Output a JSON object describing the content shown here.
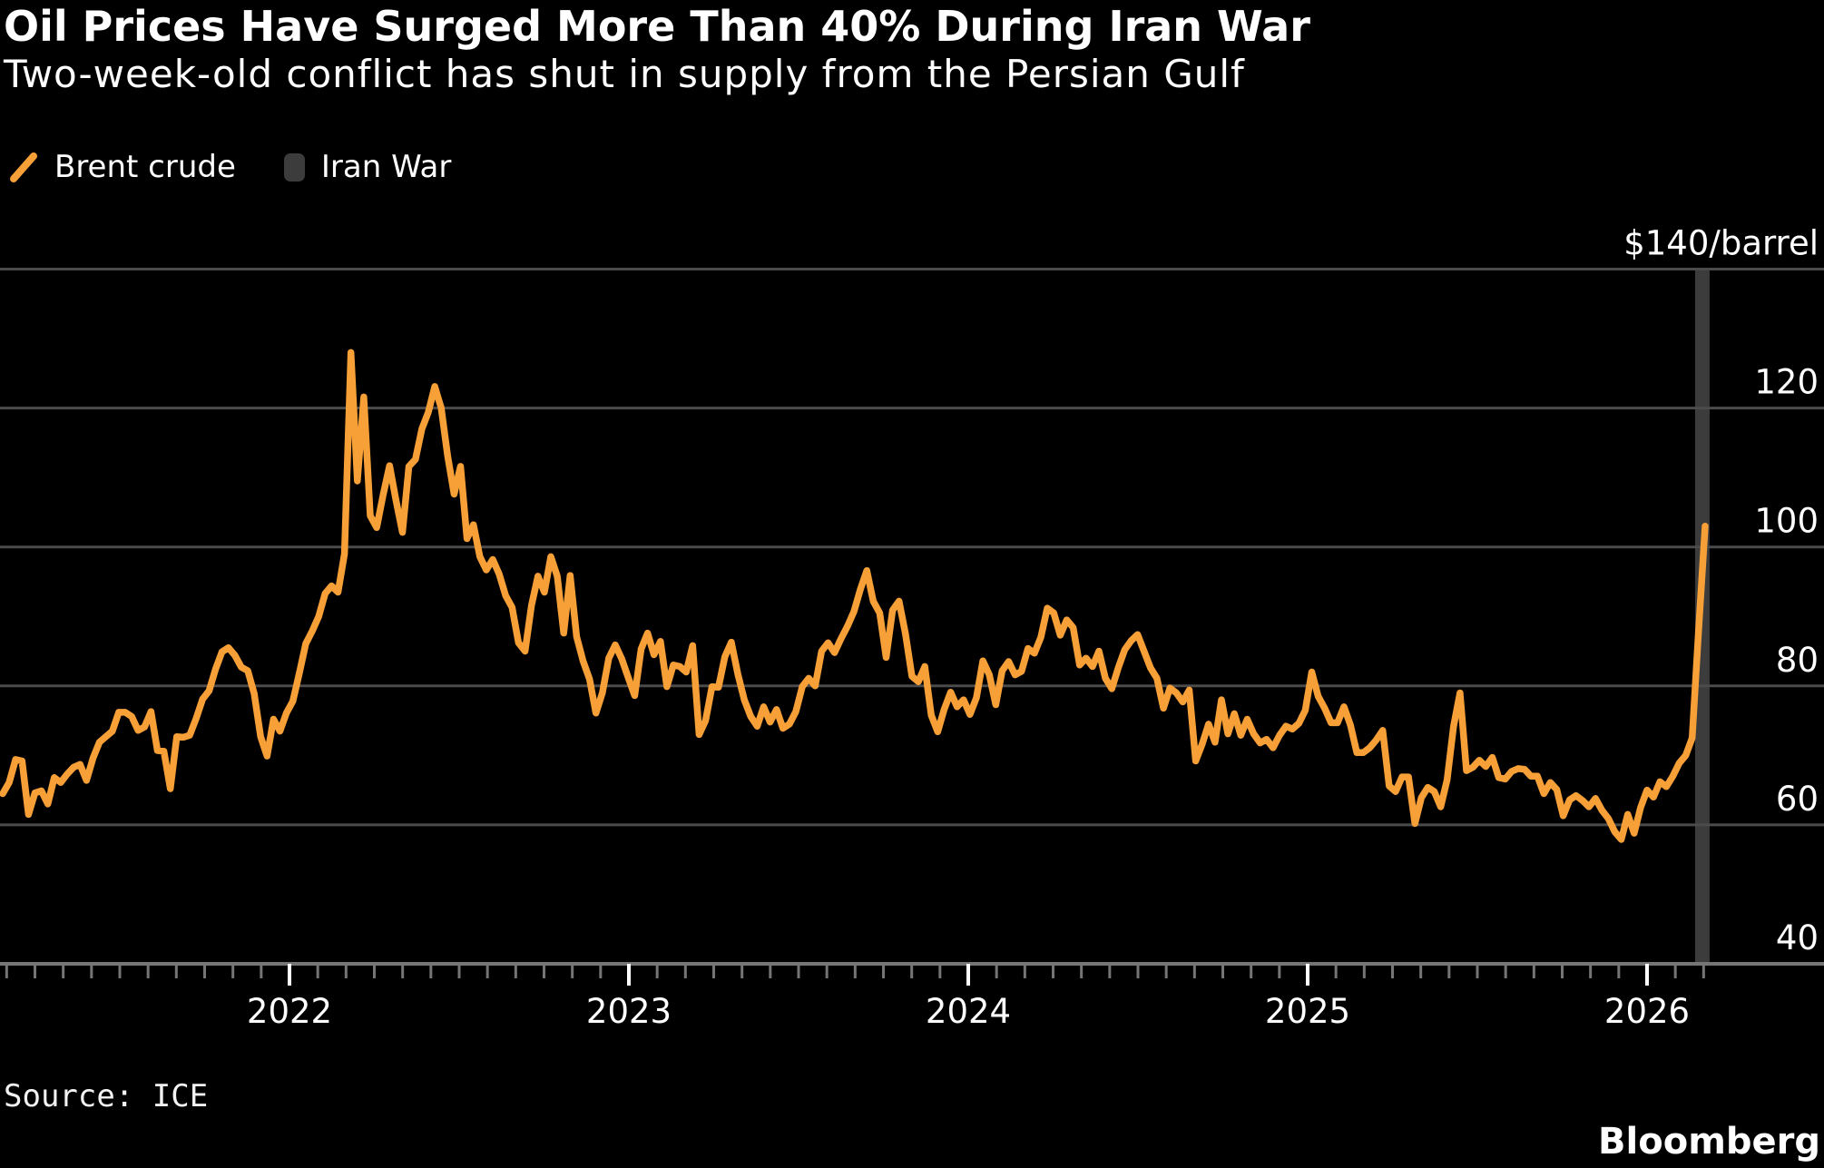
{
  "header": {
    "title": "Oil Prices Have Surged More Than 40% During Iran War",
    "subtitle": "Two-week-old conflict has shut in supply from the Persian Gulf"
  },
  "legend": {
    "brent_label": "Brent crude",
    "war_label": "Iran War"
  },
  "footer": {
    "source": "Source: ICE",
    "brand": "Bloomberg"
  },
  "colors": {
    "background": "#000000",
    "line_orange": "#F7A038",
    "gridline": "#4B4B4B",
    "axis": "#757575",
    "war_band": "#3C3C3C",
    "text_white": "#FFFFFF"
  },
  "chart_data": {
    "type": "line",
    "title": "Oil Prices Have Surged More Than 40% During Iran War",
    "xlabel": "",
    "ylabel": "$/barrel",
    "ylim": [
      40,
      140
    ],
    "grid": true,
    "legend_position": "top-left",
    "top_axis_label": "$140/barrel",
    "ytick_values": [
      120,
      100,
      80,
      60,
      40
    ],
    "ytick_labels": [
      "120",
      "100",
      "80",
      "60",
      "40"
    ],
    "year_ticks": [
      "2022",
      "2023",
      "2024",
      "2025",
      "2026"
    ],
    "band": {
      "name": "Iran War",
      "start_t": 2026.1415,
      "end_t": 2026.1843
    },
    "series": [
      {
        "name": "Brent crude",
        "units": "USD per barrel",
        "t0_years": 2021.155,
        "dt_years": 0.019,
        "prices": [
          64.5,
          66.1,
          69.4,
          69.2,
          61.5,
          64.6,
          64.9,
          63.0,
          66.8,
          66.1,
          67.3,
          68.3,
          68.7,
          66.4,
          69.6,
          71.9,
          72.7,
          73.5,
          76.2,
          76.2,
          75.6,
          73.6,
          74.1,
          76.3,
          70.7,
          70.6,
          65.2,
          72.7,
          72.6,
          72.9,
          75.3,
          78.1,
          79.3,
          82.4,
          84.9,
          85.5,
          84.4,
          82.7,
          82.2,
          78.9,
          72.7,
          69.9,
          75.2,
          73.5,
          76.1,
          77.8,
          81.8,
          86.1,
          87.9,
          90.0,
          93.3,
          94.4,
          93.5,
          99.0,
          128.0,
          109.5,
          121.6,
          104.5,
          102.8,
          107.5,
          111.7,
          106.7,
          102.1,
          111.6,
          112.6,
          117.0,
          119.4,
          123.1,
          120.0,
          113.1,
          107.6,
          111.6,
          101.2,
          103.2,
          98.6,
          96.7,
          98.2,
          96.1,
          93.0,
          91.3,
          86.2,
          85.0,
          91.6,
          95.8,
          93.5,
          98.6,
          95.8,
          87.6,
          95.9,
          87.1,
          83.6,
          81.0,
          76.1,
          79.0,
          84.0,
          85.9,
          83.9,
          81.2,
          78.6,
          85.3,
          87.6,
          84.5,
          86.4,
          79.9,
          83.0,
          82.8,
          82.0,
          85.8,
          73.0,
          75.0,
          79.9,
          79.8,
          84.2,
          86.3,
          81.7,
          78.0,
          75.6,
          74.2,
          77.0,
          74.8,
          76.6,
          73.9,
          74.5,
          76.3,
          79.9,
          81.1,
          80.0,
          85.0,
          86.2,
          84.8,
          86.8,
          88.6,
          90.7,
          93.9,
          96.6,
          92.2,
          90.5,
          84.1,
          90.9,
          92.2,
          87.5,
          81.4,
          80.6,
          82.8,
          75.8,
          73.4,
          76.6,
          79.1,
          77.0,
          78.0,
          75.9,
          78.3,
          83.6,
          81.6,
          77.3,
          82.2,
          83.5,
          81.6,
          82.1,
          85.4,
          84.7,
          87.0,
          91.2,
          90.5,
          87.3,
          89.5,
          88.4,
          83.0,
          84.0,
          82.8,
          85.0,
          81.1,
          79.6,
          82.6,
          85.2,
          86.5,
          87.4,
          85.0,
          82.6,
          81.1,
          76.8,
          79.7,
          79.0,
          77.7,
          79.4,
          69.2,
          71.6,
          74.5,
          71.9,
          78.0,
          73.1,
          76.0,
          72.9,
          75.2,
          73.1,
          71.8,
          72.3,
          71.1,
          72.9,
          74.2,
          73.8,
          74.6,
          76.5,
          82.0,
          78.5,
          76.8,
          74.7,
          74.7,
          77.0,
          74.4,
          70.4,
          70.4,
          71.1,
          72.2,
          73.6,
          65.6,
          64.8,
          66.9,
          66.9,
          60.2,
          63.9,
          65.4,
          64.8,
          62.6,
          66.5,
          74.2,
          79.0,
          67.8,
          68.3,
          69.3,
          68.4,
          69.7,
          66.8,
          66.6,
          67.7,
          68.1,
          68.0,
          67.0,
          67.0,
          64.5,
          66.1,
          65.1,
          61.3,
          63.6,
          64.2,
          63.5,
          62.6,
          63.8,
          62.1,
          60.9,
          59.0,
          57.9,
          61.5,
          58.8,
          62.5,
          65.0,
          64.0,
          66.2,
          65.5,
          67.0,
          68.9,
          70.0,
          72.5,
          88.0,
          103.0
        ]
      }
    ]
  }
}
